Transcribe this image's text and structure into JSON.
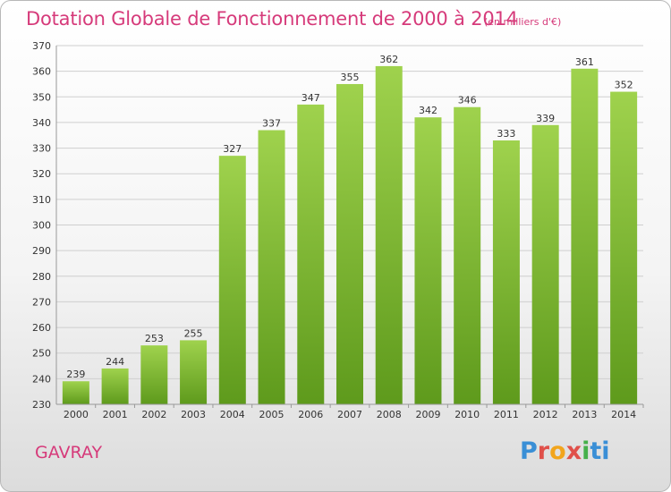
{
  "chart_data": {
    "type": "bar",
    "title": "Dotation Globale de Fonctionnement de 2000 à 2014",
    "subtitle": "(en milliers d'€)",
    "categories": [
      "2000",
      "2001",
      "2002",
      "2003",
      "2004",
      "2005",
      "2006",
      "2007",
      "2008",
      "2009",
      "2010",
      "2011",
      "2012",
      "2013",
      "2014"
    ],
    "values": [
      239,
      244,
      253,
      255,
      327,
      337,
      347,
      355,
      362,
      342,
      346,
      333,
      339,
      361,
      352
    ],
    "ylim": [
      230,
      370
    ],
    "yticks": [
      230,
      240,
      250,
      260,
      270,
      280,
      290,
      300,
      310,
      320,
      330,
      340,
      350,
      360,
      370
    ],
    "grid": true,
    "bar_color": "#8cc63f",
    "bar_color_dark": "#5e9a1c"
  },
  "place_name": "GAVRAY",
  "logo": {
    "letters": [
      "P",
      "r",
      "o",
      "x",
      "i",
      "ti"
    ]
  }
}
